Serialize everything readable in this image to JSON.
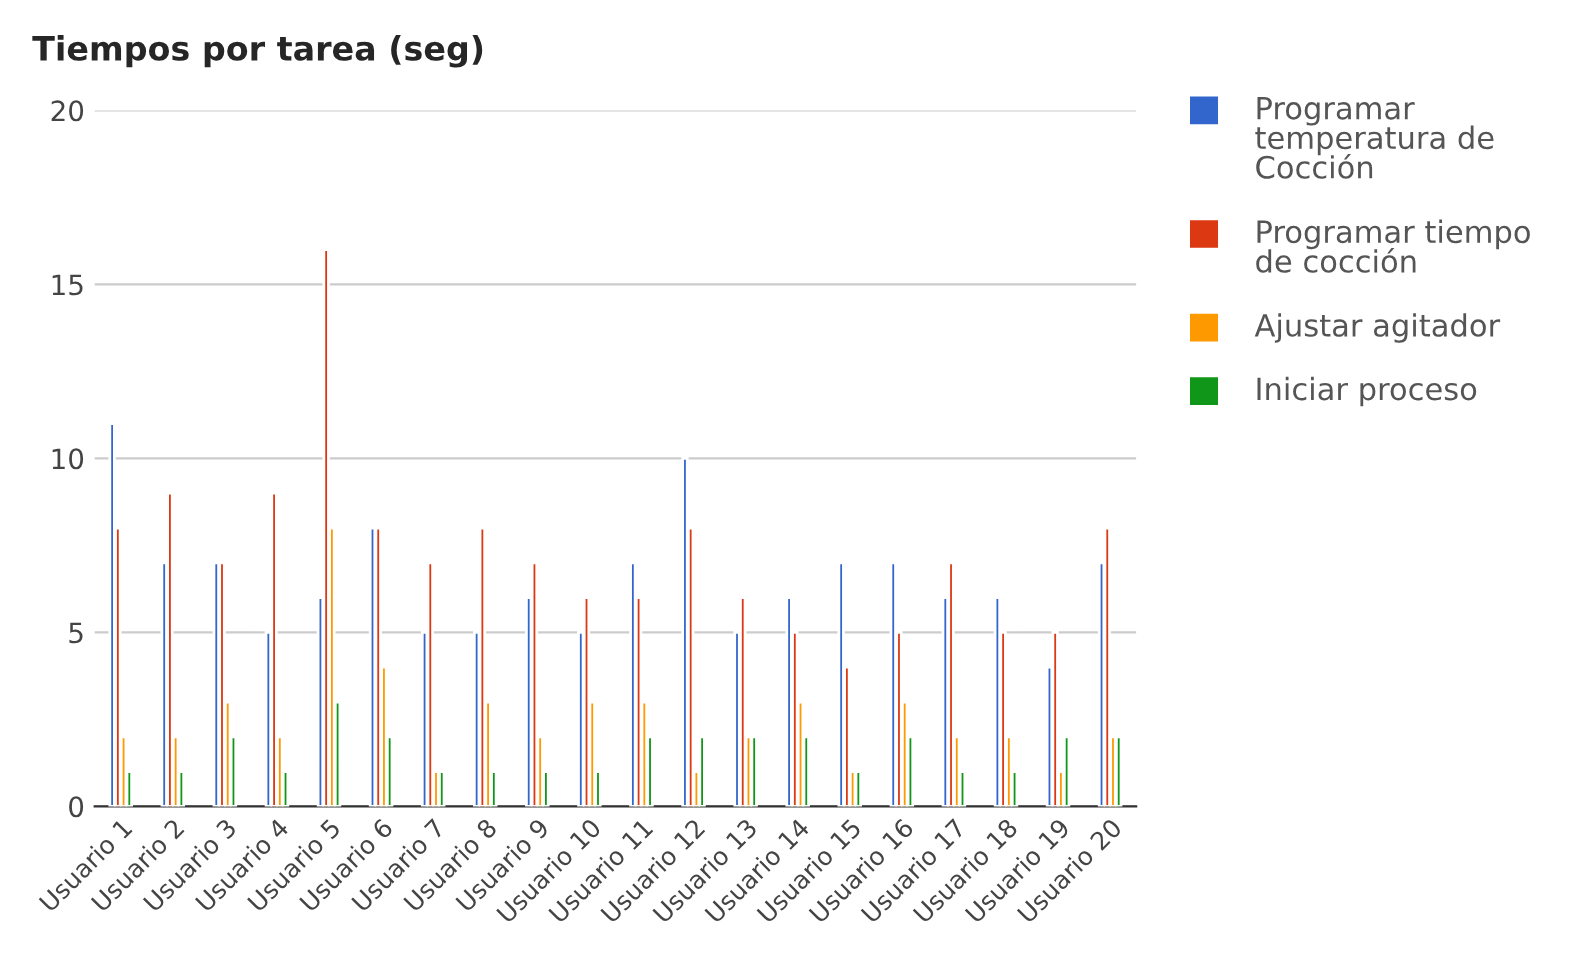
{
  "chart_data": {
    "type": "bar",
    "title": "Tiempos por tarea (seg)",
    "categories": [
      "Usuario 1",
      "Usuario 2",
      "Usuario 3",
      "Usuario 4",
      "Usuario 5",
      "Usuario 6",
      "Usuario 7",
      "Usuario 8",
      "Usuario 9",
      "Usuario 10",
      "Usuario 11",
      "Usuario 12",
      "Usuario 13",
      "Usuario 14",
      "Usuario 15",
      "Usuario 16",
      "Usuario 17",
      "Usuario 18",
      "Usuario 19",
      "Usuario 20"
    ],
    "series": [
      {
        "name": "Programar temperatura de Cocción",
        "color": "#3366cc",
        "values": [
          11,
          7,
          7,
          5,
          6,
          8,
          5,
          5,
          6,
          5,
          7,
          10,
          5,
          6,
          7,
          7,
          6,
          6,
          4,
          7
        ]
      },
      {
        "name": "Programar tiempo de cocción",
        "color": "#dc3912",
        "values": [
          8,
          9,
          7,
          9,
          16,
          8,
          7,
          8,
          7,
          6,
          6,
          8,
          6,
          5,
          4,
          5,
          7,
          5,
          5,
          8
        ]
      },
      {
        "name": "Ajustar agitador",
        "color": "#ff9900",
        "values": [
          2,
          2,
          3,
          2,
          8,
          4,
          1,
          3,
          2,
          3,
          3,
          1,
          2,
          3,
          1,
          3,
          2,
          2,
          1,
          2
        ]
      },
      {
        "name": "Iniciar proceso",
        "color": "#109618",
        "values": [
          1,
          1,
          2,
          1,
          3,
          2,
          1,
          1,
          1,
          1,
          2,
          2,
          2,
          2,
          1,
          2,
          1,
          1,
          2,
          2
        ]
      }
    ],
    "ylim": [
      0,
      20
    ],
    "yticks": [
      0,
      5,
      10,
      15,
      20
    ],
    "grid": "y",
    "legend": "right"
  }
}
